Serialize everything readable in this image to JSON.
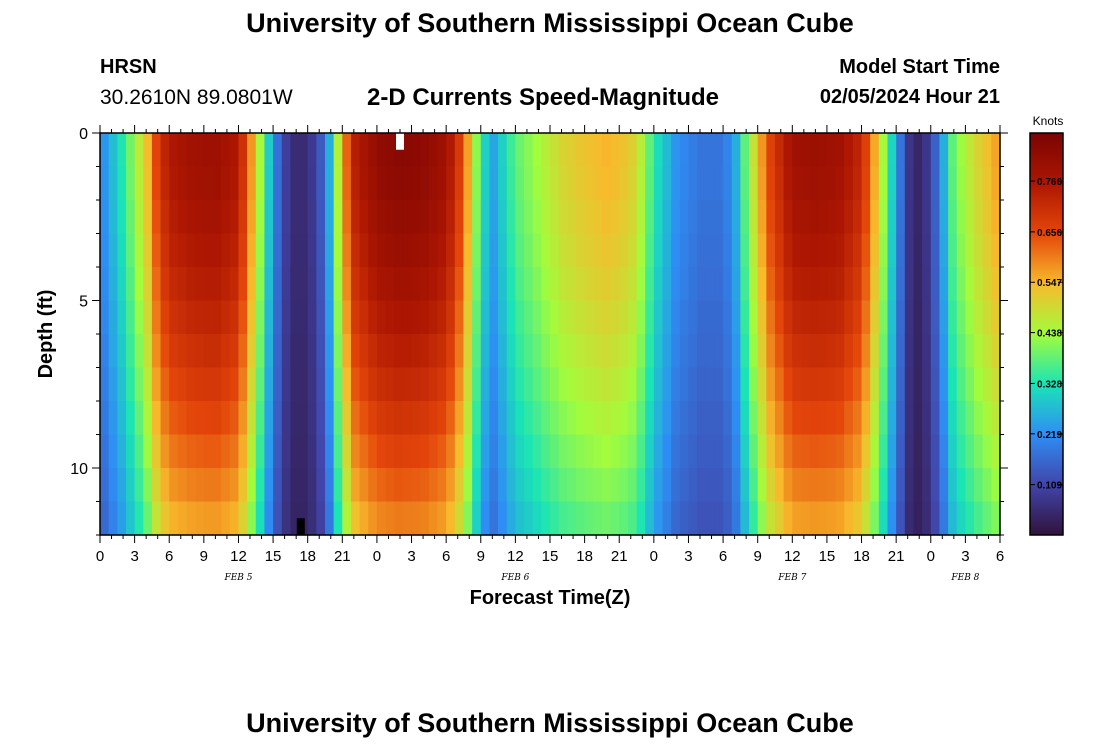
{
  "page": {
    "title_top": "University of Southern Mississippi Ocean Cube",
    "title_bottom": "University of Southern Mississippi Ocean Cube",
    "station_code": "HRSN",
    "station_coords": "30.2610N  89.0801W",
    "chart_title": "2-D Currents Speed-Magnitude",
    "model_start_label": "Model Start Time",
    "model_start_value": "02/05/2024 Hour 21"
  },
  "chart_data": {
    "type": "heatmap",
    "title": "2-D Currents Speed-Magnitude",
    "xlabel": "Forecast Time(Z)",
    "ylabel": "Depth (ft)",
    "colorbar_label": "Knots",
    "colorbar_ticks": [
      0.109,
      0.219,
      0.328,
      0.438,
      0.547,
      0.656,
      0.766
    ],
    "color_range": [
      0.0,
      0.87
    ],
    "hour_range": [
      0,
      78
    ],
    "depth_range": [
      0,
      12
    ],
    "x_tick_hours": [
      0,
      3,
      6,
      9,
      12,
      15,
      18,
      21,
      24,
      27,
      30,
      33,
      36,
      39,
      42,
      45,
      48,
      51,
      54,
      57,
      60,
      63,
      66,
      69,
      72,
      75,
      78
    ],
    "x_tick_labels": [
      "0",
      "3",
      "6",
      "9",
      "12",
      "15",
      "18",
      "21",
      "0",
      "3",
      "6",
      "9",
      "12",
      "15",
      "18",
      "21",
      "0",
      "3",
      "6",
      "9",
      "12",
      "15",
      "18",
      "21",
      "0",
      "3",
      "6"
    ],
    "y_ticks": [
      0,
      5,
      10
    ],
    "y_tick_labels": [
      "0",
      "5",
      "10"
    ],
    "date_labels": [
      {
        "hour": 12,
        "label": "FEB 5"
      },
      {
        "hour": 36,
        "label": "FEB 6"
      },
      {
        "hour": 60,
        "label": "FEB 7"
      },
      {
        "hour": 75,
        "label": "FEB 8"
      }
    ],
    "surface_profile": {
      "hours": [
        0,
        2,
        4,
        5,
        6,
        8,
        10,
        12,
        13,
        14,
        15,
        16,
        17,
        18,
        19,
        20,
        21,
        22,
        24,
        26,
        28,
        30,
        31,
        32,
        33,
        34,
        36,
        38,
        40,
        42,
        44,
        46,
        47,
        48,
        50,
        52,
        54,
        55,
        56,
        58,
        60,
        62,
        64,
        66,
        67,
        68,
        69,
        70,
        71,
        72,
        73,
        74,
        76,
        78
      ],
      "speeds": [
        0.2,
        0.34,
        0.52,
        0.68,
        0.76,
        0.79,
        0.8,
        0.76,
        0.6,
        0.42,
        0.22,
        0.1,
        0.05,
        0.06,
        0.12,
        0.28,
        0.56,
        0.74,
        0.82,
        0.84,
        0.83,
        0.79,
        0.7,
        0.55,
        0.34,
        0.24,
        0.38,
        0.44,
        0.5,
        0.53,
        0.55,
        0.52,
        0.45,
        0.34,
        0.22,
        0.18,
        0.18,
        0.24,
        0.4,
        0.66,
        0.79,
        0.8,
        0.79,
        0.72,
        0.58,
        0.42,
        0.24,
        0.08,
        0.04,
        0.1,
        0.24,
        0.4,
        0.5,
        0.58
      ]
    },
    "bottom_factor": 0.7,
    "markers": [
      {
        "hour": 26,
        "depth_from": 0,
        "depth_to": 0.5,
        "color": "#ffffff"
      },
      {
        "hour": 17.4,
        "depth_from": 11.5,
        "depth_to": 12,
        "color": "#000000"
      }
    ]
  }
}
